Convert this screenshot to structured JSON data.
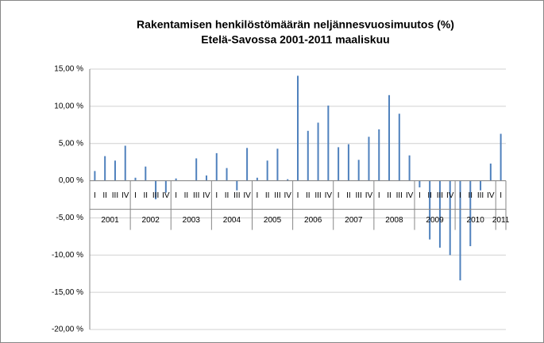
{
  "chart_data": {
    "type": "bar",
    "title": [
      "Rakentamisen henkilöstömäärän neljännesvuosimuutos (%)",
      "Etelä-Savossa 2001-2011 maaliskuu"
    ],
    "categories": [
      "I",
      "II",
      "III",
      "IV",
      "I",
      "II",
      "III",
      "IV",
      "I",
      "II",
      "III",
      "IV",
      "I",
      "II",
      "III",
      "IV",
      "I",
      "II",
      "III",
      "IV",
      "I",
      "II",
      "III",
      "IV",
      "I",
      "II",
      "III",
      "IV",
      "I",
      "II",
      "III",
      "IV",
      "I",
      "II",
      "III",
      "IV",
      "I",
      "II",
      "III",
      "IV",
      "I"
    ],
    "years": [
      "2001",
      "2002",
      "2003",
      "2004",
      "2005",
      "2006",
      "2007",
      "2008",
      "2009",
      "2010",
      "2011"
    ],
    "values": [
      1.3,
      3.3,
      2.7,
      4.7,
      0.4,
      1.9,
      -2.5,
      -1.6,
      0.3,
      0.0,
      3.0,
      0.7,
      3.7,
      1.7,
      -1.3,
      4.4,
      0.4,
      2.7,
      4.3,
      0.2,
      14.1,
      6.7,
      7.8,
      10.1,
      4.5,
      4.9,
      2.8,
      5.9,
      6.9,
      11.5,
      9.0,
      3.4,
      -0.9,
      -7.9,
      -9.0,
      -10.0,
      -13.4,
      -8.8,
      -1.3,
      2.3,
      6.3
    ],
    "color": "#4f81bd",
    "ylim": [
      -20,
      15
    ],
    "yticks": [
      {
        "value": -20,
        "label": "-20,00 %"
      },
      {
        "value": -15,
        "label": "-15,00 %"
      },
      {
        "value": -10,
        "label": "-10,00 %"
      },
      {
        "value": -5,
        "label": "-5,00 %"
      },
      {
        "value": 0,
        "label": "0,00 %"
      },
      {
        "value": 5,
        "label": "5,00 %"
      },
      {
        "value": 10,
        "label": "10,00 %"
      },
      {
        "value": 15,
        "label": "15,00 %"
      }
    ],
    "grid": true
  }
}
